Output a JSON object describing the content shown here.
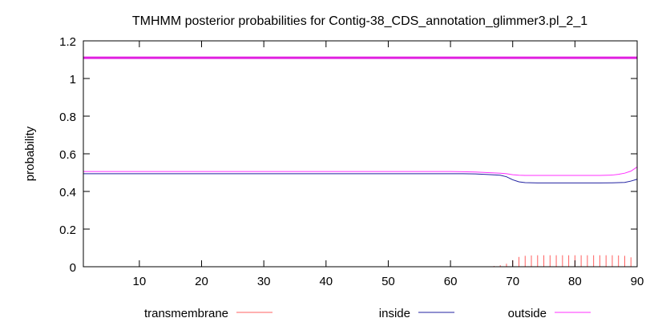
{
  "chart_data": {
    "type": "line",
    "title": "TMHMM posterior probabilities for Contig-38_CDS_annotation_glimmer3.pl_2_1",
    "xlabel": "",
    "ylabel": "probability",
    "xlim": [
      1,
      90
    ],
    "ylim": [
      0,
      1.2
    ],
    "x_ticks": [
      10,
      20,
      30,
      40,
      50,
      60,
      70,
      80,
      90
    ],
    "y_ticks": [
      0,
      0.2,
      0.4,
      0.6,
      0.8,
      1,
      1.2
    ],
    "y_tick_labels": [
      "0",
      "0.2",
      "0.4",
      "0.6",
      "0.8",
      "1",
      "1.2"
    ],
    "grid": false,
    "legend_position": "bottom",
    "reference_line": {
      "y": 1.11,
      "color": "#e020e0"
    },
    "series": [
      {
        "name": "transmembrane",
        "style": "impulses",
        "color": "#ff6060",
        "x": [
          66,
          67,
          68,
          69,
          70,
          71,
          72,
          73,
          74,
          75,
          76,
          77,
          78,
          79,
          80,
          81,
          82,
          83,
          84,
          85,
          86,
          87,
          88,
          89
        ],
        "values": [
          0.002,
          0.004,
          0.008,
          0.016,
          0.035,
          0.052,
          0.058,
          0.06,
          0.061,
          0.061,
          0.061,
          0.061,
          0.061,
          0.061,
          0.061,
          0.061,
          0.061,
          0.061,
          0.061,
          0.061,
          0.061,
          0.06,
          0.058,
          0.05
        ]
      },
      {
        "name": "inside",
        "style": "line",
        "color": "#2020a0",
        "x": [
          1,
          60,
          62,
          64,
          66,
          68,
          69,
          70,
          71,
          72,
          74,
          76,
          80,
          84,
          86,
          88,
          89,
          90
        ],
        "values": [
          0.494,
          0.494,
          0.494,
          0.493,
          0.49,
          0.486,
          0.478,
          0.462,
          0.451,
          0.447,
          0.445,
          0.445,
          0.445,
          0.445,
          0.446,
          0.448,
          0.455,
          0.465
        ]
      },
      {
        "name": "outside",
        "style": "line",
        "color": "#ff30ff",
        "x": [
          1,
          60,
          62,
          64,
          66,
          68,
          69,
          70,
          71,
          72,
          74,
          76,
          80,
          84,
          86,
          87,
          88,
          89,
          90
        ],
        "values": [
          0.506,
          0.506,
          0.505,
          0.503,
          0.5,
          0.497,
          0.494,
          0.489,
          0.486,
          0.485,
          0.485,
          0.485,
          0.485,
          0.485,
          0.487,
          0.491,
          0.497,
          0.508,
          0.53
        ]
      }
    ]
  }
}
